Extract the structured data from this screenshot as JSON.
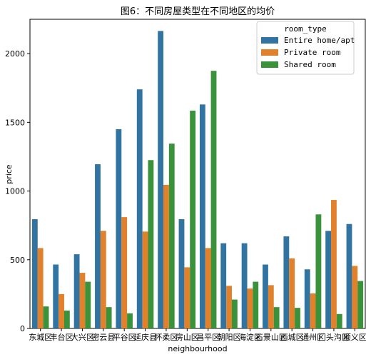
{
  "chart_data": {
    "type": "bar",
    "title": "图6：不同房屋类型在不同地区的均价",
    "xlabel": "neighbourhood",
    "ylabel": "price",
    "ylim": [
      0,
      2250
    ],
    "yticks": [
      0,
      500,
      1000,
      1500,
      2000
    ],
    "categories": [
      "东城区",
      "丰台区",
      "大兴区",
      "密云县",
      "平谷区",
      "延庆县",
      "怀柔区",
      "房山区",
      "昌平区",
      "朝阳区",
      "海淀区",
      "石景山区",
      "西城区",
      "通州区",
      "门头沟区",
      "顺义区"
    ],
    "legend": {
      "title": "room_type",
      "position": "top-right"
    },
    "series": [
      {
        "name": "Entire home/apt",
        "color": "#3274a1",
        "values": [
          795,
          465,
          540,
          1195,
          1450,
          1740,
          2165,
          795,
          1630,
          620,
          620,
          465,
          670,
          430,
          710,
          760
        ]
      },
      {
        "name": "Private room",
        "color": "#e1812c",
        "values": [
          585,
          250,
          405,
          710,
          810,
          705,
          1045,
          445,
          585,
          310,
          290,
          315,
          510,
          255,
          935,
          455
        ]
      },
      {
        "name": "Shared room",
        "color": "#3a923a",
        "values": [
          160,
          130,
          340,
          155,
          110,
          1225,
          1345,
          1585,
          1875,
          210,
          340,
          155,
          150,
          830,
          105,
          345
        ]
      }
    ]
  }
}
